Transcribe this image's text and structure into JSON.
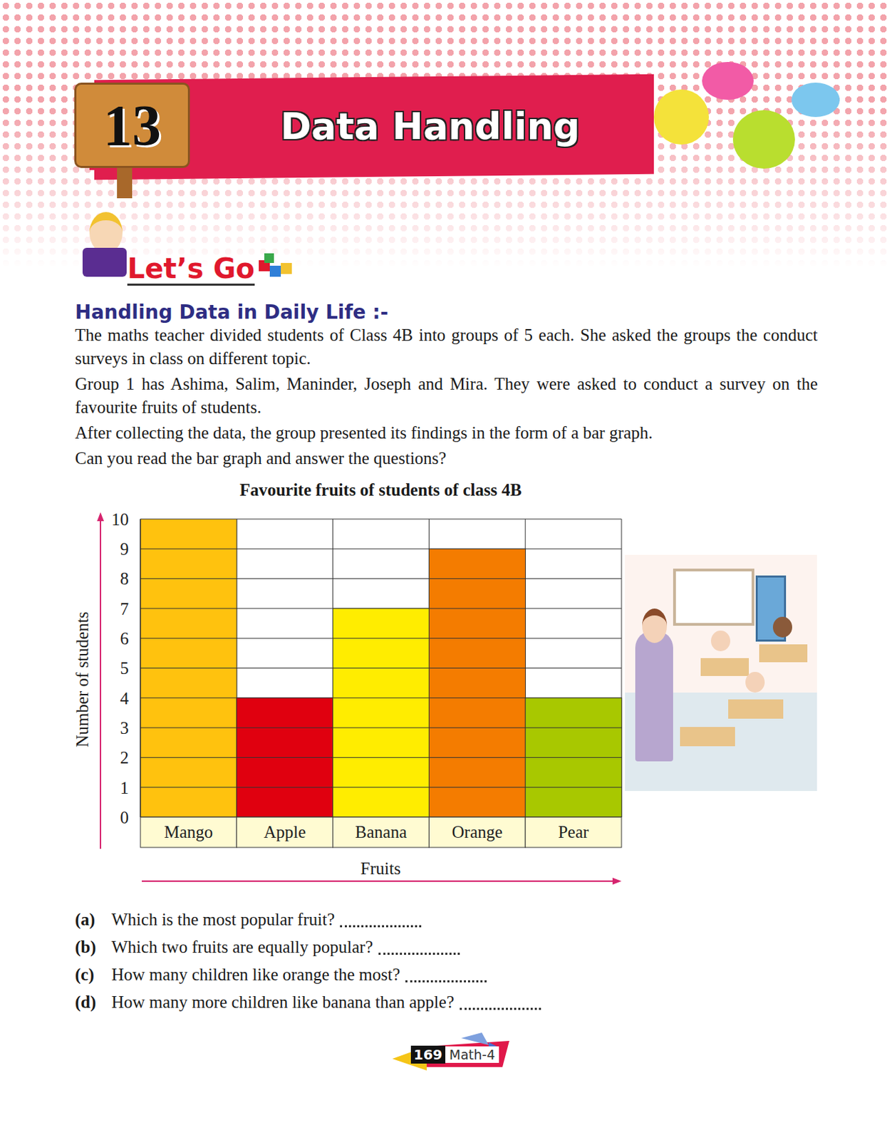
{
  "header": {
    "chapter": "13",
    "title": "Data Handling"
  },
  "intro": {
    "label": "Let’s Go",
    "heading": "Handling Data in Daily Life :-",
    "paragraphs": [
      "The maths teacher divided students of Class 4B into groups of 5 each. She asked the groups the conduct surveys in class on different topic.",
      "Group 1 has Ashima, Salim, Maninder, Joseph and Mira. They were asked to conduct a survey on the favourite fruits of students.",
      "After collecting the data, the group presented its findings in the form of a bar graph.",
      "Can you read the bar graph and answer the questions?"
    ]
  },
  "chart_data": {
    "type": "bar",
    "title": "Favourite fruits of students of class 4B",
    "xlabel": "Fruits",
    "ylabel": "Number of students",
    "categories": [
      "Mango",
      "Apple",
      "Banana",
      "Orange",
      "Pear"
    ],
    "values": [
      10,
      4,
      7,
      9,
      4
    ],
    "colors": [
      "#ffc20e",
      "#e0000f",
      "#ffed00",
      "#f47c00",
      "#a8c800"
    ],
    "ylim": [
      0,
      10
    ],
    "yticks": [
      0,
      1,
      2,
      3,
      4,
      5,
      6,
      7,
      8,
      9,
      10
    ],
    "grid": true
  },
  "questions": [
    {
      "label": "(a)",
      "text": "Which is the most popular fruit?"
    },
    {
      "label": "(b)",
      "text": "Which two fruits are equally popular?"
    },
    {
      "label": "(c)",
      "text": "How many children like orange the most?"
    },
    {
      "label": "(d)",
      "text": "How many more children like banana than apple?"
    }
  ],
  "footer": {
    "page": "169",
    "book": "Math-4"
  }
}
